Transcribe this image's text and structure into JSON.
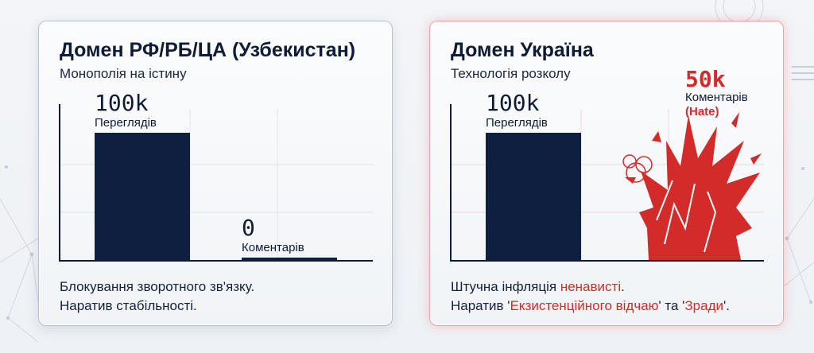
{
  "chart_data": [
    {
      "type": "bar",
      "title": "Домен РФ/РБ/ЦА (Узбекистан)",
      "subtitle": "Монополія на істину",
      "categories": [
        "Переглядів",
        "Коментарів"
      ],
      "series": [
        {
          "values": [
            100000,
            0
          ]
        }
      ],
      "data_labels": [
        "100k",
        "0"
      ],
      "ylim": [
        0,
        120000
      ],
      "grid": true,
      "colors": {
        "bar": "#0e1f3f"
      }
    },
    {
      "type": "bar",
      "title": "Домен Україна",
      "subtitle": "Технологія розколу",
      "categories": [
        "Переглядів",
        "Коментарів"
      ],
      "series": [
        {
          "values": [
            100000,
            50000
          ]
        }
      ],
      "data_labels": [
        "100k",
        "50k"
      ],
      "annotation": "(Hate)",
      "ylim": [
        0,
        120000
      ],
      "grid": true,
      "colors": {
        "bar": "#0e1f3f",
        "explosion": "#d32a2a"
      }
    }
  ],
  "left_footer": {
    "line1": "Блокування зворотного зв'язку.",
    "line2": "Наратив стабільності."
  },
  "right_footer": {
    "line1_a": "Штучна інфляція ",
    "line1_b": "ненависті",
    "line1_c": ".",
    "line2_a": "Наратив '",
    "line2_b": "Екзистенційного відчаю",
    "line2_c": "' та '",
    "line2_d": "Зради",
    "line2_e": "'."
  }
}
